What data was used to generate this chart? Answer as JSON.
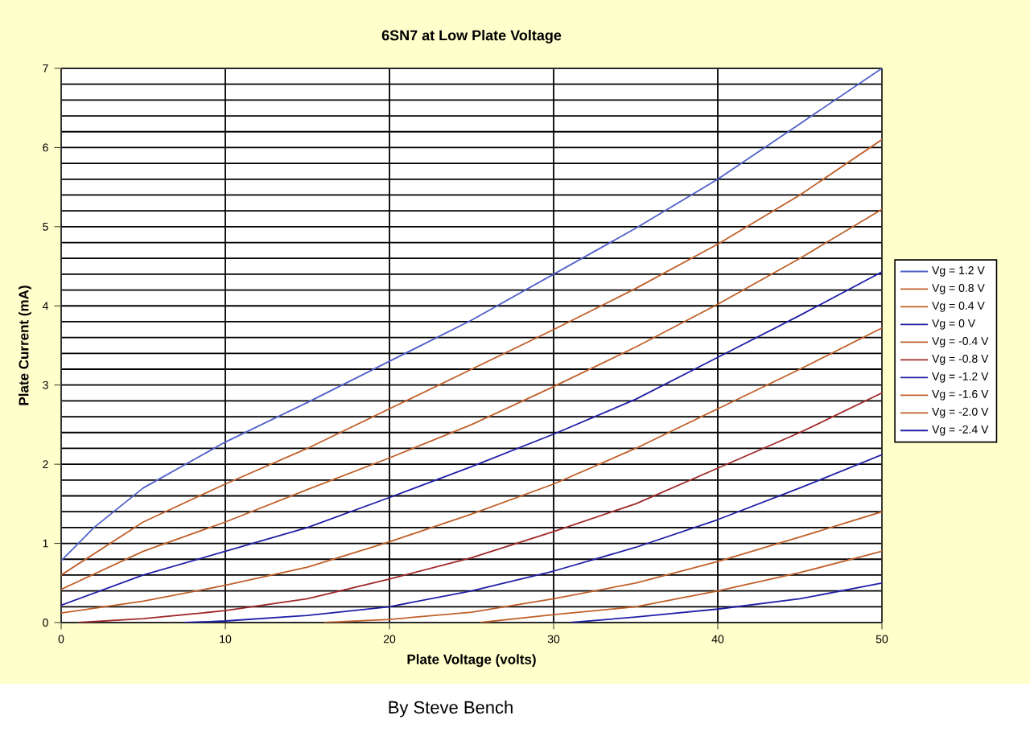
{
  "chart_data": {
    "type": "line",
    "title": "6SN7 at Low Plate Voltage",
    "xlabel": "Plate Voltage  (volts)",
    "ylabel": "Plate Current (mA)",
    "xlim": [
      0,
      50
    ],
    "ylim": [
      0,
      7
    ],
    "xticks": [
      0,
      10,
      20,
      30,
      40,
      50
    ],
    "yticks": [
      0,
      1,
      2,
      3,
      4,
      5,
      6,
      7
    ],
    "grid": true,
    "legend": "right",
    "marker": "none",
    "line_style": "solid",
    "annotations": [
      "By Steve Bench"
    ],
    "series": [
      {
        "name": "Vg = 1.2 V",
        "color": "#5060c8",
        "x": [
          0,
          2,
          5,
          10,
          15,
          20,
          25,
          30,
          35,
          40,
          45,
          50
        ],
        "values": [
          0.78,
          1.2,
          1.7,
          2.28,
          2.78,
          3.3,
          3.82,
          4.4,
          4.98,
          5.6,
          6.3,
          7.0
        ]
      },
      {
        "name": "Vg = 0.8 V",
        "color": "#c0602a",
        "x": [
          0,
          5,
          10,
          15,
          20,
          25,
          30,
          35,
          40,
          45,
          50
        ],
        "values": [
          0.6,
          1.27,
          1.75,
          2.2,
          2.7,
          3.2,
          3.7,
          4.22,
          4.78,
          5.4,
          6.1
        ]
      },
      {
        "name": "Vg = 0.4 V",
        "color": "#c0602a",
        "x": [
          0,
          5,
          10,
          15,
          20,
          25,
          30,
          35,
          40,
          45,
          50
        ],
        "values": [
          0.42,
          0.9,
          1.27,
          1.68,
          2.08,
          2.5,
          2.98,
          3.48,
          4.02,
          4.6,
          5.22
        ]
      },
      {
        "name": "Vg = 0 V",
        "color": "#2020a8",
        "x": [
          0,
          5,
          10,
          15,
          20,
          25,
          30,
          35,
          40,
          45,
          50
        ],
        "values": [
          0.22,
          0.6,
          0.9,
          1.2,
          1.58,
          1.97,
          2.38,
          2.82,
          3.35,
          3.88,
          4.43
        ]
      },
      {
        "name": "Vg = -0.4 V",
        "color": "#c0602a",
        "x": [
          0,
          5,
          10,
          15,
          20,
          25,
          30,
          35,
          40,
          45,
          50
        ],
        "values": [
          0.12,
          0.27,
          0.47,
          0.7,
          1.02,
          1.37,
          1.75,
          2.2,
          2.7,
          3.2,
          3.72
        ]
      },
      {
        "name": "Vg = -0.8 V",
        "color": "#a02828",
        "x": [
          1,
          5,
          10,
          15,
          20,
          25,
          30,
          35,
          40,
          45,
          50
        ],
        "values": [
          0,
          0.05,
          0.15,
          0.3,
          0.55,
          0.82,
          1.15,
          1.5,
          1.95,
          2.4,
          2.9
        ]
      },
      {
        "name": "Vg = -1.2 V",
        "color": "#2020a8",
        "x": [
          7.5,
          10,
          15,
          20,
          25,
          30,
          35,
          40,
          45,
          50
        ],
        "values": [
          0,
          0.02,
          0.09,
          0.2,
          0.4,
          0.65,
          0.95,
          1.3,
          1.7,
          2.12
        ]
      },
      {
        "name": "Vg = -1.6 V",
        "color": "#c0602a",
        "x": [
          16,
          20,
          25,
          30,
          35,
          40,
          45,
          50
        ],
        "values": [
          0,
          0.04,
          0.13,
          0.3,
          0.5,
          0.77,
          1.08,
          1.4
        ]
      },
      {
        "name": "Vg = -2.0 V",
        "color": "#c0602a",
        "x": [
          25.5,
          30,
          35,
          40,
          45,
          50
        ],
        "values": [
          0,
          0.1,
          0.2,
          0.4,
          0.63,
          0.9
        ]
      },
      {
        "name": "Vg = -2.4 V",
        "color": "#2020a8",
        "x": [
          31,
          35,
          40,
          45,
          50
        ],
        "values": [
          0,
          0.07,
          0.17,
          0.3,
          0.5
        ]
      }
    ]
  }
}
